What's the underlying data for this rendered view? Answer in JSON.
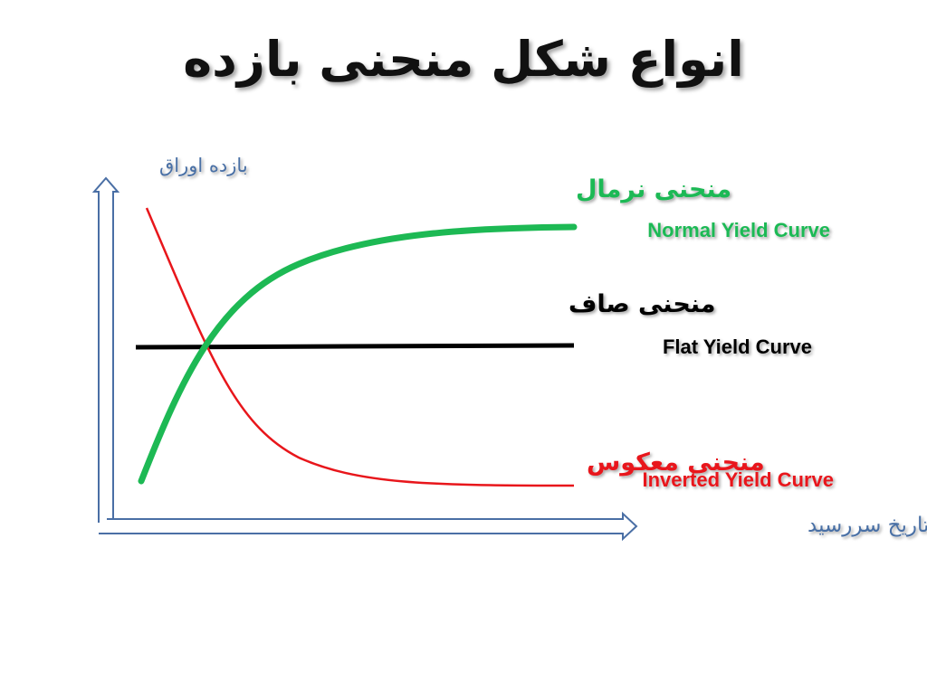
{
  "title": "انواع شکل منحنی بازده",
  "axes": {
    "y_label": "بازده اوراق",
    "x_label": "تاریخ سررسید",
    "color": "#4a6fa5"
  },
  "curves": {
    "normal": {
      "label_fa": "منحنی نرمال",
      "label_en": "Normal Yield Curve",
      "color": "#1db954"
    },
    "flat": {
      "label_fa": "منحنی صاف",
      "label_en": "Flat Yield Curve",
      "color": "#000000"
    },
    "inverted": {
      "label_fa": "منحنی معکوس",
      "label_en": "Inverted Yield Curve",
      "color": "#e8161b"
    }
  }
}
